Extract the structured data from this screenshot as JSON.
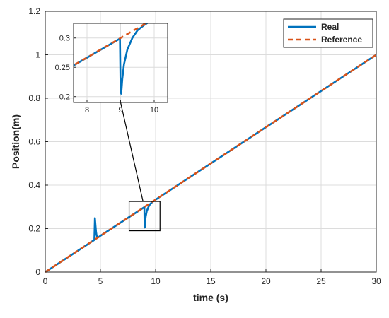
{
  "chart_data": {
    "type": "line",
    "xlabel": "time (s)",
    "ylabel": "Position(m)",
    "xlim": [
      0,
      30
    ],
    "ylim": [
      0,
      1.2
    ],
    "xticks": [
      "0",
      "5",
      "10",
      "15",
      "20",
      "25",
      "30"
    ],
    "yticks": [
      "0",
      "0.2",
      "0.4",
      "0.6",
      "0.8",
      "1",
      "1.2"
    ],
    "grid": true,
    "legend_position": "top-right",
    "series": [
      {
        "name": "Real",
        "color": "#0072BD",
        "style": "solid",
        "x": [
          0,
          4.45,
          4.5,
          4.55,
          4.6,
          4.65,
          4.7,
          4.8,
          4.9,
          5.0,
          8.98,
          9.0,
          9.02,
          9.05,
          9.1,
          9.2,
          9.35,
          9.5,
          9.7,
          10.0,
          30
        ],
        "y": [
          0,
          0.148,
          0.248,
          0.215,
          0.185,
          0.17,
          0.162,
          0.16,
          0.163,
          0.167,
          0.299,
          0.21,
          0.205,
          0.23,
          0.255,
          0.28,
          0.3,
          0.313,
          0.322,
          0.333,
          1.0
        ]
      },
      {
        "name": "Reference",
        "color": "#D95319",
        "style": "dashed",
        "x": [
          0,
          30
        ],
        "y": [
          0,
          1.0
        ]
      }
    ],
    "inset": {
      "xlim": [
        7.6,
        10.4
      ],
      "ylim": [
        0.19,
        0.325
      ],
      "xticks": [
        "8",
        "9",
        "10"
      ],
      "yticks": [
        "0.2",
        "0.25",
        "0.3"
      ],
      "zoom_box": {
        "x": [
          7.6,
          10.4
        ],
        "y": [
          0.19,
          0.325
        ]
      }
    }
  }
}
